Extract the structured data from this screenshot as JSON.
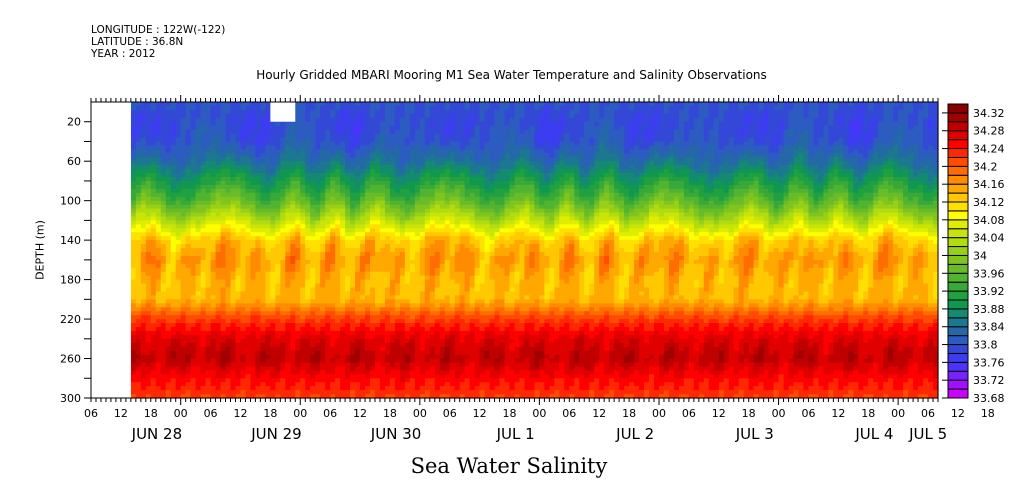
{
  "header": {
    "longitude": "LONGITUDE : 122W(-122)",
    "latitude": "LATITUDE : 36.8N",
    "year": "YEAR : 2012"
  },
  "chart_data": {
    "type": "heatmap",
    "title": "Hourly Gridded MBARI Mooring M1 Sea Water Temperature and Salinity Observations",
    "xlabel": "Sea Water Salinity",
    "ylabel": "DEPTH (m)",
    "x_range_hours": [
      0,
      170
    ],
    "x_start": "2012-06-28 06:00",
    "x_end": "2012-07-05 08:00",
    "ylim": [
      300,
      0
    ],
    "y_ticks": [
      20,
      60,
      100,
      140,
      180,
      220,
      260,
      300
    ],
    "x_hour_ticks": [
      "06",
      "12",
      "18",
      "00",
      "06",
      "12",
      "18",
      "00",
      "06",
      "12",
      "18",
      "00",
      "06",
      "12",
      "18",
      "00",
      "06",
      "12",
      "18",
      "00",
      "06",
      "12",
      "18",
      "00",
      "06",
      "12",
      "18",
      "00",
      "06",
      "12",
      "18",
      "00",
      "06"
    ],
    "x_day_labels": [
      {
        "label": "JUN 28",
        "hour": 6
      },
      {
        "label": "JUN 29",
        "hour": 30
      },
      {
        "label": "JUN 30",
        "hour": 54
      },
      {
        "label": "JUL  1",
        "hour": 78
      },
      {
        "label": "JUL  2",
        "hour": 102
      },
      {
        "label": "JUL  3",
        "hour": 126
      },
      {
        "label": "JUL  4",
        "hour": 150
      },
      {
        "label": "JUL  5",
        "hour": 162
      }
    ],
    "missing_regions": [
      {
        "hour_start": 0,
        "hour_end": 8,
        "depth_start": 0,
        "depth_end": 300
      },
      {
        "hour_start": 36,
        "hour_end": 41,
        "depth_start": 0,
        "depth_end": 20
      }
    ],
    "colorbar": {
      "levels": [
        33.68,
        33.7,
        33.72,
        33.74,
        33.76,
        33.78,
        33.8,
        33.82,
        33.84,
        33.86,
        33.88,
        33.9,
        33.92,
        33.94,
        33.96,
        33.98,
        34,
        34.02,
        34.04,
        34.06,
        34.08,
        34.1,
        34.12,
        34.14,
        34.16,
        34.18,
        34.2,
        34.22,
        34.24,
        34.26,
        34.28,
        34.3,
        34.32,
        34.34
      ],
      "labels": [
        "33.68",
        "33.72",
        "33.76",
        "33.8",
        "33.84",
        "33.88",
        "33.92",
        "33.96",
        "34",
        "34.04",
        "34.08",
        "34.12",
        "34.16",
        "34.2",
        "34.24",
        "34.28",
        "34.32"
      ],
      "colors": [
        "#cc00ff",
        "#a010ff",
        "#7a20ff",
        "#5030ff",
        "#3c3cf0",
        "#3448d8",
        "#2c5cc0",
        "#2468a8",
        "#1c7890",
        "#148a70",
        "#109850",
        "#20a040",
        "#38a838",
        "#50b430",
        "#68bc28",
        "#80c420",
        "#98d018",
        "#b0dc10",
        "#c8e408",
        "#e0ec00",
        "#ffff00",
        "#ffe000",
        "#ffc800",
        "#ffa800",
        "#ff8c00",
        "#ff6c00",
        "#ff4c00",
        "#ff2800",
        "#ff0000",
        "#e00000",
        "#c00000",
        "#a00000",
        "#880000"
      ]
    },
    "profile": {
      "description": "Salinity increases with depth: ~33.72-33.82 at surface (0-50 m), ~33.9-34.0 at 80-120 m, ~34.12-34.18 at 140-200 m, max ~34.28-34.32 near 250-260 m, ~34.22 at 300 m",
      "depth_m": [
        0,
        20,
        40,
        60,
        80,
        100,
        120,
        140,
        160,
        180,
        200,
        220,
        240,
        260,
        280,
        300
      ],
      "mean_salinity": [
        33.8,
        33.79,
        33.8,
        33.84,
        33.9,
        33.96,
        34.04,
        34.13,
        34.16,
        34.14,
        34.14,
        34.22,
        34.27,
        34.29,
        34.25,
        34.22
      ]
    }
  }
}
